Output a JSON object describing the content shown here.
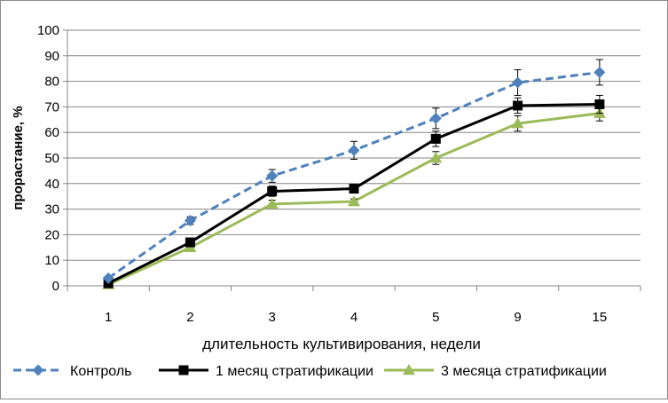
{
  "chart_data": {
    "type": "line",
    "title": "",
    "xlabel": "длительность культивирования, недели",
    "ylabel": "прорастание, %",
    "categories": [
      "1",
      "2",
      "3",
      "4",
      "5",
      "9",
      "15"
    ],
    "ylim": [
      0,
      100
    ],
    "ytick_step": 10,
    "y_ticks": [
      "0",
      "10",
      "20",
      "30",
      "40",
      "50",
      "60",
      "70",
      "80",
      "90",
      "100"
    ],
    "grid": "horizontal",
    "legend_position": "bottom",
    "series": [
      {
        "name": "Контроль",
        "values": [
          3,
          25.5,
          43,
          53,
          65.5,
          79.5,
          83.5
        ],
        "errors": [
          0,
          1.5,
          2.5,
          3.5,
          4,
          5,
          5
        ],
        "color": "#4F81BD",
        "line_style": "dashed",
        "marker": "diamond"
      },
      {
        "name": "1 месяц стратификации",
        "values": [
          1,
          17,
          37,
          38,
          57.5,
          70.5,
          71
        ],
        "errors": [
          0,
          1.5,
          2,
          1.5,
          3,
          3,
          3.5
        ],
        "color": "#000000",
        "line_style": "solid",
        "marker": "square"
      },
      {
        "name": "3 месяца стратификации",
        "values": [
          0.5,
          15,
          32,
          33,
          50,
          63.5,
          67.5
        ],
        "errors": [
          0,
          1,
          1.5,
          1,
          2.5,
          3,
          3
        ],
        "color": "#9BBB59",
        "line_style": "solid",
        "marker": "triangle"
      }
    ]
  }
}
